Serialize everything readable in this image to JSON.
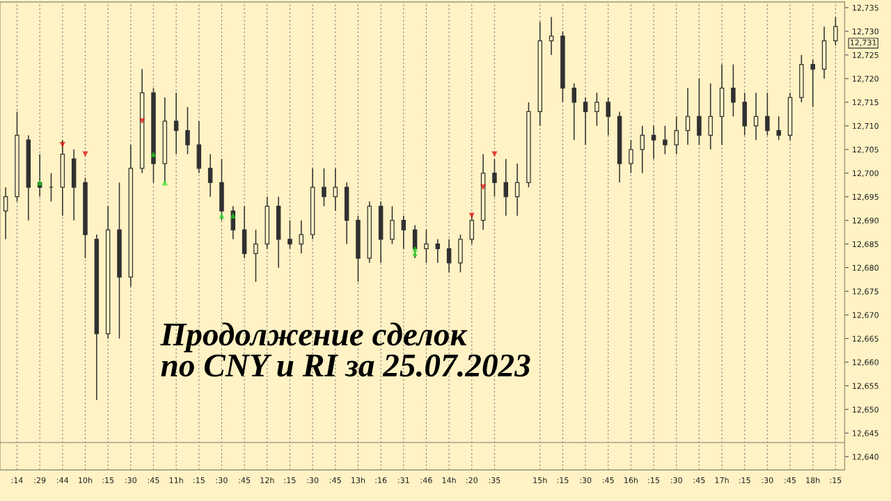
{
  "chart_data": {
    "type": "candlestick",
    "title": "Продолжение сделок\nпо CNY и RI за 25.07.2023",
    "color": "#303030",
    "categories": [
      null,
      ":14",
      null,
      ":29",
      null,
      ":44",
      null,
      "10h",
      null,
      ":15",
      null,
      ":30",
      null,
      ":45",
      null,
      "11h",
      null,
      ":15",
      null,
      ":30",
      null,
      ":45",
      null,
      "12h",
      null,
      ":15",
      null,
      ":30",
      null,
      ":45",
      null,
      "13h",
      null,
      ":16",
      null,
      ":31",
      null,
      ":46",
      null,
      "14h",
      null,
      ":20",
      null,
      ":35",
      null,
      null,
      null,
      "15h",
      null,
      ":15",
      null,
      ":30",
      null,
      ":45",
      null,
      "16h",
      null,
      ":15",
      null,
      ":30",
      null,
      ":45",
      null,
      "17h",
      null,
      ":15",
      null,
      ":30",
      null,
      ":45",
      null,
      "18h",
      null,
      ":15"
    ],
    "ohlc": [
      [
        12692,
        12697,
        12686,
        12695
      ],
      [
        12695,
        12713,
        12694,
        12708
      ],
      [
        12707,
        12708,
        12690,
        12697
      ],
      [
        12698,
        12704,
        12695,
        12697
      ],
      [
        12697,
        12700,
        12694,
        12697
      ],
      [
        12697,
        12707,
        12691,
        12704
      ],
      [
        12703,
        12705,
        12690,
        12697
      ],
      [
        12698,
        12699,
        12682,
        12687
      ],
      [
        12686,
        12687,
        12652,
        12666
      ],
      [
        12666,
        12693,
        12665,
        12688
      ],
      [
        12688,
        12698,
        12665,
        12678
      ],
      [
        12678,
        12706,
        12676,
        12701
      ],
      [
        12701,
        12722,
        12700,
        12717
      ],
      [
        12717,
        12718,
        12698,
        12702
      ],
      [
        12702,
        12716,
        12698,
        12711
      ],
      [
        12711,
        12717,
        12704,
        12709
      ],
      [
        12709,
        12714,
        12704,
        12706
      ],
      [
        12706,
        12711,
        12700,
        12701
      ],
      [
        12701,
        12704,
        12695,
        12698
      ],
      [
        12698,
        12703,
        12690,
        12692
      ],
      [
        12692,
        12693,
        12686,
        12688
      ],
      [
        12688,
        12693,
        12682,
        12683
      ],
      [
        12683,
        12688,
        12677,
        12685
      ],
      [
        12685,
        12695,
        12684,
        12693
      ],
      [
        12693,
        12695,
        12680,
        12686
      ],
      [
        12686,
        12690,
        12684,
        12685
      ],
      [
        12685,
        12690,
        12683,
        12687
      ],
      [
        12687,
        12701,
        12686,
        12697
      ],
      [
        12697,
        12701,
        12693,
        12695
      ],
      [
        12695,
        12701,
        12692,
        12697
      ],
      [
        12697,
        12698,
        12685,
        12690
      ],
      [
        12690,
        12691,
        12677,
        12682
      ],
      [
        12682,
        12694,
        12681,
        12693
      ],
      [
        12693,
        12694,
        12681,
        12686
      ],
      [
        12686,
        12693,
        12685,
        12690
      ],
      [
        12690,
        12691,
        12684,
        12688
      ],
      [
        12688,
        12689,
        12682,
        12684
      ],
      [
        12684,
        12688,
        12681,
        12685
      ],
      [
        12685,
        12686,
        12681,
        12684
      ],
      [
        12684,
        12686,
        12679,
        12681
      ],
      [
        12681,
        12687,
        12679,
        12686
      ],
      [
        12686,
        12691,
        12685,
        12690
      ],
      [
        12690,
        12704,
        12688,
        12700
      ],
      [
        12700,
        12703,
        12695,
        12698
      ],
      [
        12698,
        12703,
        12691,
        12695
      ],
      [
        12695,
        12702,
        12691,
        12698
      ],
      [
        12698,
        12715,
        12697,
        12713
      ],
      [
        12713,
        12732,
        12710,
        12728
      ],
      [
        12728,
        12733,
        12725,
        12729
      ],
      [
        12729,
        12730,
        12715,
        12718
      ],
      [
        12718,
        12719,
        12707,
        12715
      ],
      [
        12715,
        12716,
        12706,
        12713
      ],
      [
        12713,
        12717,
        12710,
        12715
      ],
      [
        12715,
        12716,
        12708,
        12712
      ],
      [
        12712,
        12713,
        12698,
        12702
      ],
      [
        12702,
        12707,
        12700,
        12705
      ],
      [
        12705,
        12710,
        12700,
        12708
      ],
      [
        12708,
        12710,
        12703,
        12707
      ],
      [
        12707,
        12710,
        12704,
        12706
      ],
      [
        12706,
        12712,
        12704,
        12709
      ],
      [
        12709,
        12718,
        12706,
        12712
      ],
      [
        12712,
        12720,
        12706,
        12708
      ],
      [
        12708,
        12719,
        12705,
        12712
      ],
      [
        12712,
        12723,
        12706,
        12718
      ],
      [
        12718,
        12723,
        12712,
        12715
      ],
      [
        12715,
        12717,
        12708,
        12710
      ],
      [
        12710,
        12717,
        12707,
        12712
      ],
      [
        12712,
        12717,
        12708,
        12709
      ],
      [
        12709,
        12712,
        12707,
        12708
      ],
      [
        12708,
        12717,
        12707,
        12716
      ],
      [
        12716,
        12725,
        12715,
        12723
      ],
      [
        12723,
        12724,
        12714,
        12722
      ],
      [
        12722,
        12731,
        12720,
        12728
      ],
      [
        12728,
        12733,
        12727,
        12731
      ]
    ],
    "series": [
      {
        "type": "scatter",
        "color": "#e00000",
        "marker": "triangle_down",
        "values": [
          null,
          null,
          null,
          null,
          null,
          12706,
          null,
          12704,
          null,
          null,
          null,
          null,
          12711,
          null,
          null,
          null,
          null,
          null,
          null,
          null,
          null,
          null,
          null,
          null,
          null,
          null,
          null,
          null,
          null,
          null,
          null,
          null,
          null,
          null,
          null,
          null,
          null,
          null,
          null,
          null,
          null,
          12691,
          12697,
          12704,
          null,
          null,
          null,
          null,
          null,
          null,
          null,
          null,
          null,
          null,
          null,
          null,
          null,
          null,
          null,
          null,
          null,
          null,
          null,
          null,
          null,
          null,
          null,
          null,
          null,
          null,
          null,
          null,
          null,
          null
        ]
      },
      {
        "type": "scatter",
        "color": "#20e020",
        "marker": "triangle",
        "values": [
          null,
          null,
          null,
          12698,
          null,
          null,
          null,
          null,
          null,
          null,
          null,
          null,
          null,
          12704,
          12698,
          null,
          null,
          null,
          null,
          12691,
          12691,
          null,
          null,
          null,
          null,
          null,
          null,
          null,
          null,
          null,
          null,
          null,
          null,
          null,
          null,
          null,
          12684,
          null,
          null,
          null,
          null,
          null,
          null,
          null,
          null,
          null,
          null,
          null,
          null,
          null,
          null,
          null,
          null,
          null,
          null,
          null,
          null,
          null,
          null,
          null,
          null,
          null,
          null,
          null,
          null,
          null,
          null,
          null,
          null,
          null,
          null,
          null,
          null,
          null
        ]
      },
      {
        "type": "scatter",
        "color": "#20e020",
        "marker": "triangle",
        "values": [
          null,
          null,
          null,
          null,
          null,
          null,
          null,
          null,
          null,
          null,
          null,
          null,
          null,
          null,
          null,
          null,
          null,
          null,
          null,
          null,
          null,
          null,
          null,
          null,
          null,
          null,
          null,
          null,
          null,
          null,
          null,
          null,
          null,
          null,
          null,
          null,
          12683,
          null,
          null,
          null,
          null,
          null,
          null,
          null,
          null,
          null,
          null,
          null,
          null,
          null,
          null,
          null,
          null,
          null,
          null,
          null,
          null,
          null,
          null,
          null,
          null,
          null,
          null,
          null,
          null,
          null,
          null,
          null,
          null,
          null,
          null,
          null,
          null,
          null
        ]
      }
    ],
    "annotations": [
      "12,731"
    ],
    "ref_lines": [
      {
        "axis": "y",
        "value": 12643,
        "color": "#a8a090"
      }
    ],
    "ylim": [
      12637.2,
      12736.2
    ],
    "yticks": [
      {
        "value": 12640,
        "label": "12,640"
      },
      {
        "value": 12645,
        "label": "12,645"
      },
      {
        "value": 12650,
        "label": "12,650"
      },
      {
        "value": 12655,
        "label": "12,655"
      },
      {
        "value": 12660,
        "label": "12,660"
      },
      {
        "value": 12665,
        "label": "12,665"
      },
      {
        "value": 12670,
        "label": "12,670"
      },
      {
        "value": 12675,
        "label": "12,675"
      },
      {
        "value": 12680,
        "label": "12,680"
      },
      {
        "value": 12685,
        "label": "12,685"
      },
      {
        "value": 12690,
        "label": "12,690"
      },
      {
        "value": 12695,
        "label": "12,695"
      },
      {
        "value": 12700,
        "label": "12,700"
      },
      {
        "value": 12705,
        "label": "12,705"
      },
      {
        "value": 12710,
        "label": "12,710"
      },
      {
        "value": 12715,
        "label": "12,715"
      },
      {
        "value": 12720,
        "label": "12,720"
      },
      {
        "value": 12725,
        "label": "12,725"
      },
      {
        "value": 12730,
        "label": "12,730"
      },
      {
        "value": 12735,
        "label": "12,735"
      }
    ],
    "grid": "x"
  }
}
